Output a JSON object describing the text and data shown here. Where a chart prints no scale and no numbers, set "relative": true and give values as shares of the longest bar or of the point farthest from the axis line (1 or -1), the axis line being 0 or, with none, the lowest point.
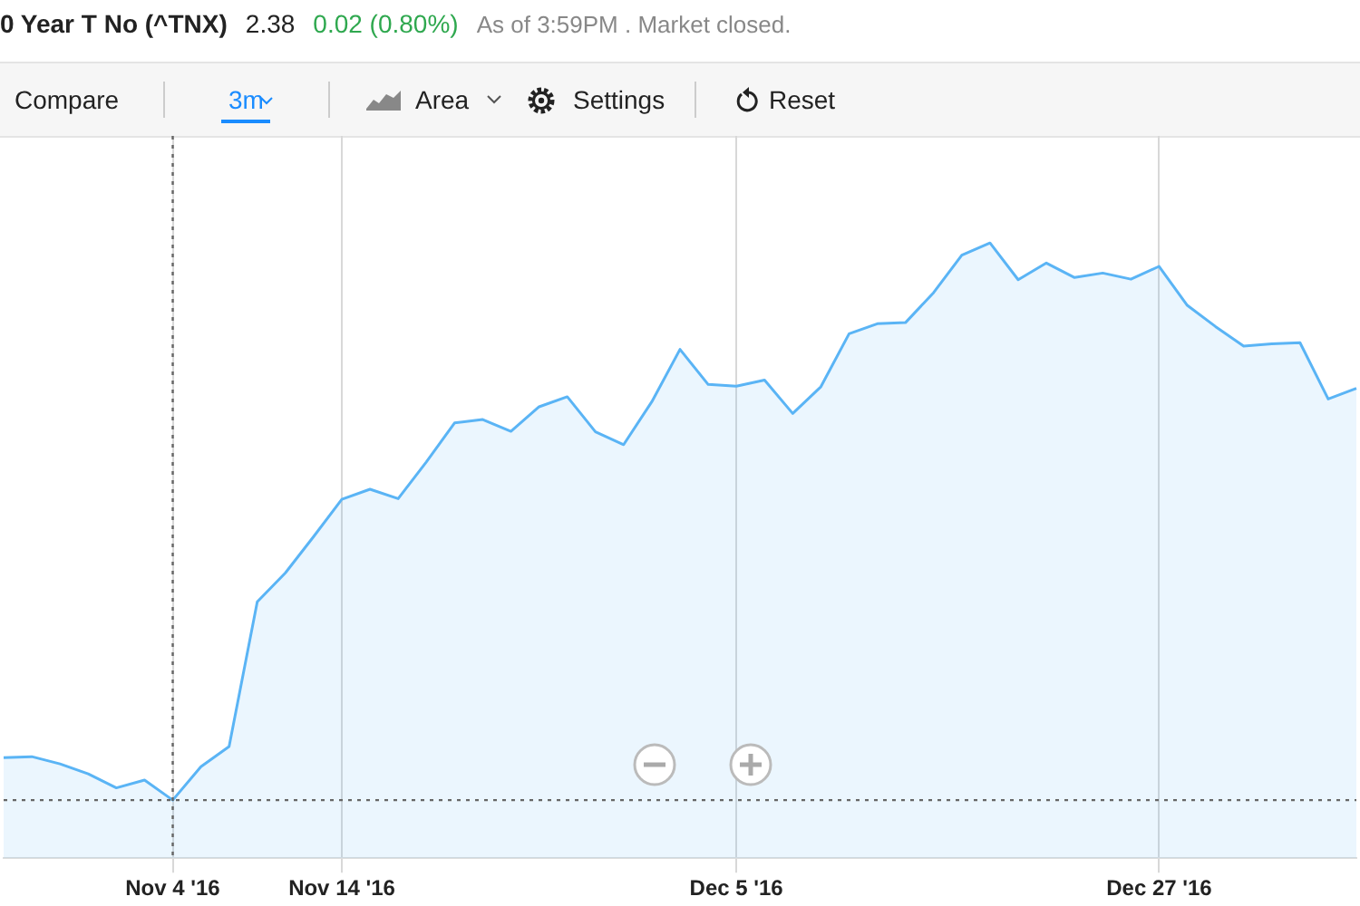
{
  "chart_data": {
    "type": "area",
    "title": "0 Year T No (^TNX)",
    "subtitle": "2.38",
    "annotations": [
      "0.02 (0.80%)",
      "As of 3:59PM . Market closed.",
      "Compare",
      "3m",
      "Area",
      "Settings",
      "Reset"
    ],
    "relative": true,
    "grid": "x",
    "legend": false,
    "categories": [
      null,
      null,
      null,
      null,
      null,
      null,
      "Nov 4 '16",
      null,
      null,
      null,
      null,
      null,
      "Nov 14 '16",
      null,
      null,
      null,
      null,
      null,
      null,
      null,
      null,
      null,
      null,
      null,
      null,
      null,
      "Dec 5 '16",
      null,
      null,
      null,
      null,
      null,
      null,
      null,
      null,
      null,
      null,
      null,
      null,
      null,
      null,
      "Dec 27 '16",
      null,
      null,
      null,
      null,
      null,
      null,
      null
    ],
    "series": [
      {
        "color": "#5ab4f5",
        "values": [
          0.076,
          0.078,
          0.065,
          0.047,
          0.022,
          0.036,
          0,
          0.06,
          0.096,
          0.356,
          0.408,
          0.473,
          0.54,
          0.558,
          0.541,
          0.607,
          0.677,
          0.683,
          0.662,
          0.706,
          0.724,
          0.661,
          0.638,
          0.715,
          0.809,
          0.746,
          0.743,
          0.754,
          0.694,
          0.742,
          0.837,
          0.855,
          0.857,
          0.911,
          0.978,
          1,
          0.934,
          0.964,
          0.938,
          0.946,
          0.935,
          0.958,
          0.888,
          0.85,
          0.815,
          0.819,
          0.821,
          0.72,
          0.739
        ]
      }
    ],
    "ref_lines": [
      {
        "axis": "x",
        "value": "Nov 4 '16",
        "line_style": "dotted",
        "color": "#666666"
      },
      {
        "axis": "y",
        "value": 0,
        "line_style": "dotted",
        "color": "#666666"
      }
    ]
  }
}
